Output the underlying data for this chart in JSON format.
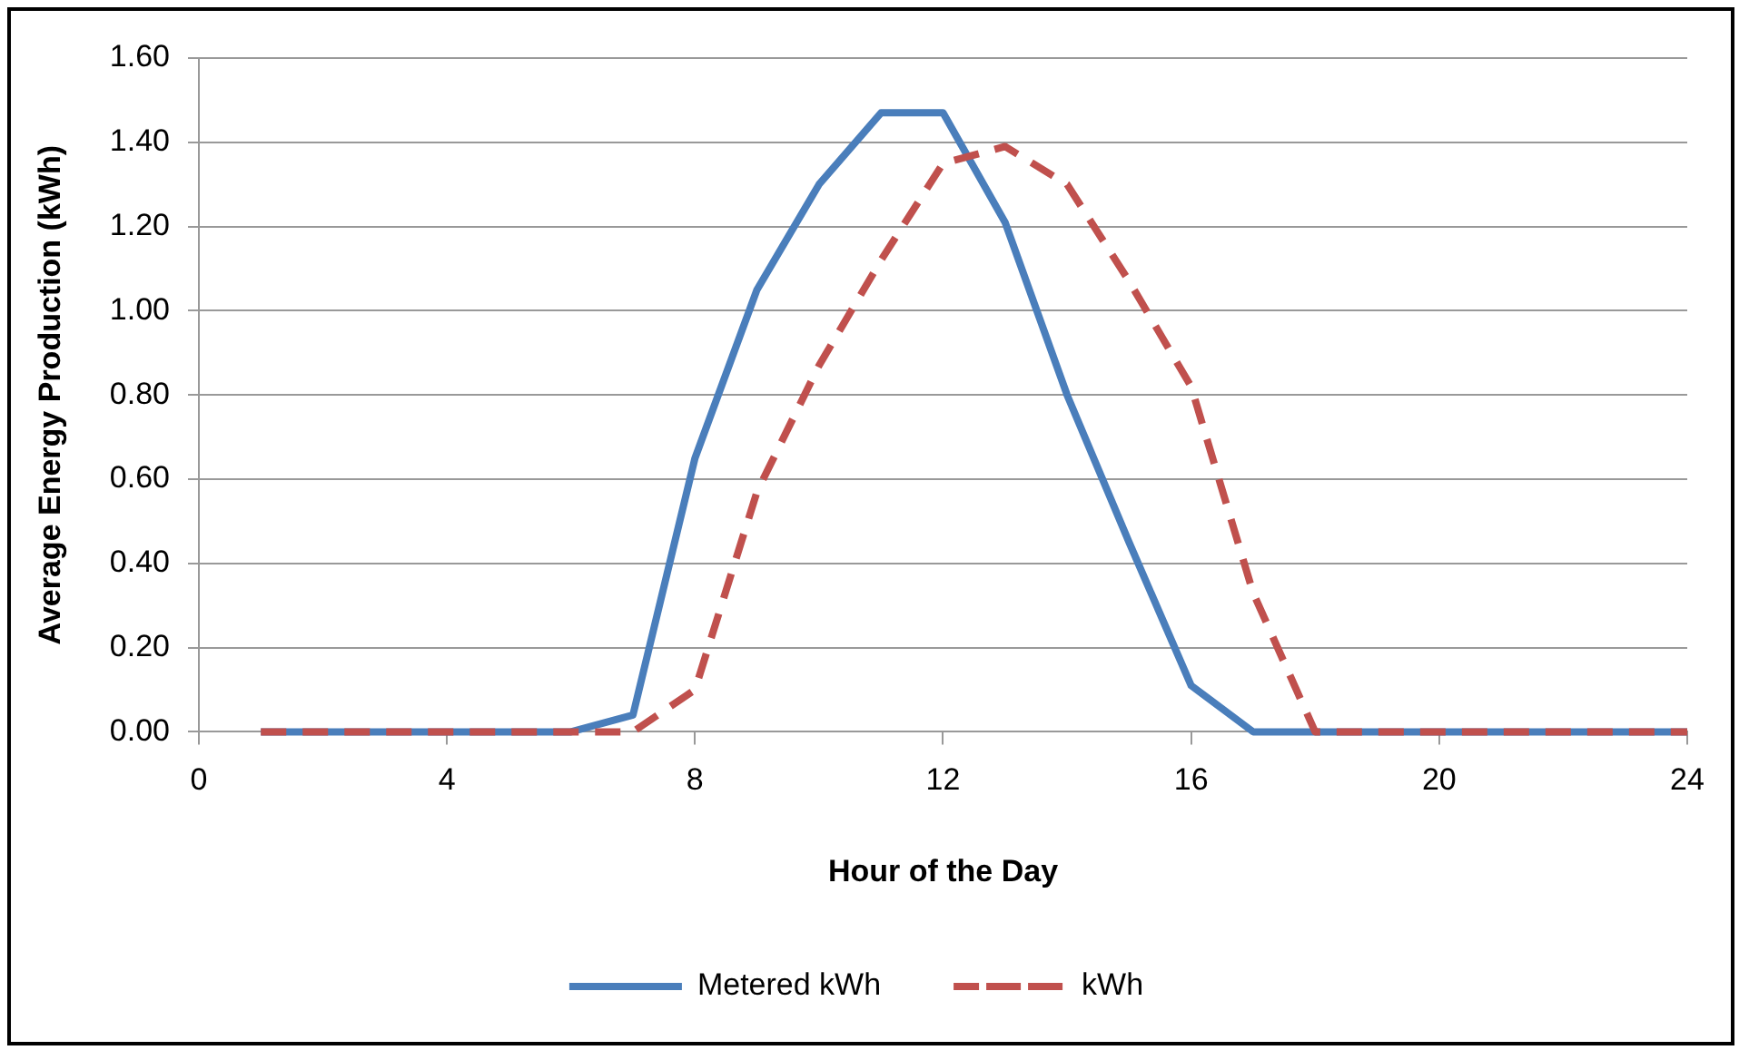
{
  "chart_data": {
    "type": "line",
    "xlabel": "Hour of the Day",
    "ylabel": "Average Energy Production (kWh)",
    "x": [
      1,
      2,
      3,
      4,
      5,
      6,
      7,
      8,
      9,
      10,
      11,
      12,
      13,
      14,
      15,
      16,
      17,
      18,
      19,
      20,
      21,
      22,
      23,
      24
    ],
    "series": [
      {
        "name": "Metered kWh",
        "color": "#4a7ebb",
        "line_style": "solid",
        "values": [
          0,
          0,
          0,
          0,
          0,
          0,
          0.04,
          0.65,
          1.05,
          1.3,
          1.47,
          1.47,
          1.21,
          0.8,
          0.45,
          0.11,
          0,
          0,
          0,
          0,
          0,
          0,
          0,
          0
        ]
      },
      {
        "name": "kWh",
        "color": "#c0504d",
        "line_style": "dashed",
        "values": [
          0,
          0,
          0,
          0,
          0,
          0,
          0,
          0.1,
          0.57,
          0.87,
          1.12,
          1.35,
          1.39,
          1.3,
          1.07,
          0.82,
          0.33,
          0,
          0,
          0,
          0,
          0,
          0,
          0
        ]
      }
    ],
    "xlim": [
      0,
      24
    ],
    "xticks": [
      0,
      4,
      8,
      12,
      16,
      20,
      24
    ],
    "ylim": [
      0,
      1.6
    ],
    "yticks": [
      {
        "value": 0,
        "label": "0.00"
      },
      {
        "value": 0.2,
        "label": "0.20"
      },
      {
        "value": 0.4,
        "label": "0.40"
      },
      {
        "value": 0.6,
        "label": "0.60"
      },
      {
        "value": 0.8,
        "label": "0.80"
      },
      {
        "value": 1.0,
        "label": "1.00"
      },
      {
        "value": 1.2,
        "label": "1.20"
      },
      {
        "value": 1.4,
        "label": "1.40"
      },
      {
        "value": 1.6,
        "label": "1.60"
      }
    ],
    "grid": "y",
    "legend": "bottom",
    "marker": "none"
  }
}
